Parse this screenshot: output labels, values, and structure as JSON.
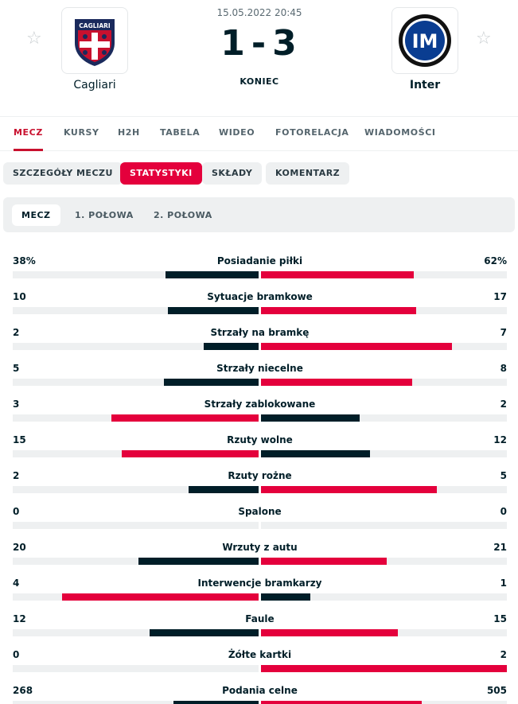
{
  "header": {
    "date_time": "15.05.2022 20:45",
    "home_score": "1",
    "score_separator": "-",
    "away_score": "3",
    "status": "KONIEC",
    "home_team": {
      "name": "Cagliari",
      "logo_text": "CAGLIARI"
    },
    "away_team": {
      "name": "Inter",
      "logo_text": "IM"
    }
  },
  "main_tabs": [
    {
      "label": "MECZ",
      "active": true
    },
    {
      "label": "KURSY"
    },
    {
      "label": "H2H"
    },
    {
      "label": "TABELA"
    },
    {
      "label": "WIDEO"
    },
    {
      "label": "FOTORELACJA"
    },
    {
      "label": "WIADOMOŚCI"
    }
  ],
  "sub_tabs": [
    {
      "label": "SZCZEGÓŁY MECZU"
    },
    {
      "label": "STATYSTYKI",
      "active": true
    },
    {
      "label": "SKŁADY"
    },
    {
      "label": "KOMENTARZ"
    }
  ],
  "period_tabs": [
    {
      "label": "MECZ",
      "active": true
    },
    {
      "label": "1. POŁOWA"
    },
    {
      "label": "2. POŁOWA"
    }
  ],
  "colors": {
    "accent": "#e4003c",
    "dark": "#001e28",
    "track": "#eef0f1"
  },
  "stats": [
    {
      "name": "Posiadanie piłki",
      "home": "38%",
      "away": "62%",
      "home_val": 38,
      "away_val": 62
    },
    {
      "name": "Sytuacje bramkowe",
      "home": "10",
      "away": "17",
      "home_val": 10,
      "away_val": 17
    },
    {
      "name": "Strzały na bramkę",
      "home": "2",
      "away": "7",
      "home_val": 2,
      "away_val": 7
    },
    {
      "name": "Strzały niecelne",
      "home": "5",
      "away": "8",
      "home_val": 5,
      "away_val": 8
    },
    {
      "name": "Strzały zablokowane",
      "home": "3",
      "away": "2",
      "home_val": 3,
      "away_val": 2
    },
    {
      "name": "Rzuty wolne",
      "home": "15",
      "away": "12",
      "home_val": 15,
      "away_val": 12
    },
    {
      "name": "Rzuty rożne",
      "home": "2",
      "away": "5",
      "home_val": 2,
      "away_val": 5
    },
    {
      "name": "Spalone",
      "home": "0",
      "away": "0",
      "home_val": 0,
      "away_val": 0
    },
    {
      "name": "Wrzuty z autu",
      "home": "20",
      "away": "21",
      "home_val": 20,
      "away_val": 21
    },
    {
      "name": "Interwencje bramkarzy",
      "home": "4",
      "away": "1",
      "home_val": 4,
      "away_val": 1
    },
    {
      "name": "Faule",
      "home": "12",
      "away": "15",
      "home_val": 12,
      "away_val": 15
    },
    {
      "name": "Żółte kartki",
      "home": "0",
      "away": "2",
      "home_val": 0,
      "away_val": 2
    },
    {
      "name": "Podania celne",
      "home": "268",
      "away": "505",
      "home_val": 268,
      "away_val": 505
    }
  ]
}
